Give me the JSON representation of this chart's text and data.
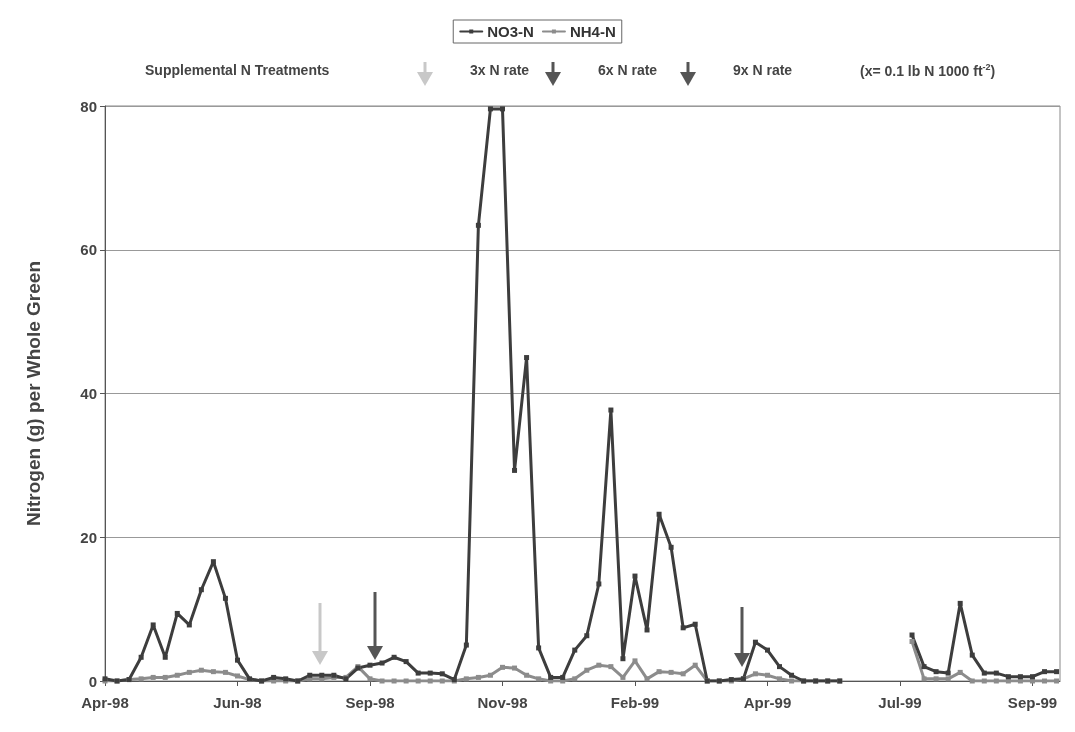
{
  "chart_data": {
    "type": "line",
    "ylabel": "Nitrogen (g) per Whole Green",
    "annotations": [
      "Supplemental N Treatments",
      "3x N rate",
      "6x N rate",
      "9x N rate",
      "(x= 0.1 lb N 1000 ft$^{-2}$)"
    ],
    "x": [
      "1998-04-01",
      "1998-04-08",
      "1998-04-15",
      "1998-04-22",
      "1998-04-29",
      "1998-05-06",
      "1998-05-13",
      "1998-05-20",
      "1998-05-27",
      "1998-06-03",
      "1998-06-10",
      "1998-06-17",
      "1998-06-24",
      "1998-07-01",
      "1998-07-08",
      "1998-07-15",
      "1998-07-22",
      "1998-07-29",
      "1998-08-05",
      "1998-08-12",
      "1998-08-19",
      "1998-08-26",
      "1998-09-02",
      "1998-09-09",
      "1998-09-16",
      "1998-09-23",
      "1998-09-30",
      "1998-10-07",
      "1998-10-14",
      "1998-10-21",
      "1998-10-28",
      "1998-11-04",
      "1998-11-11",
      "1998-11-18",
      "1998-11-25",
      "1998-12-02",
      "1998-12-09",
      "1998-12-16",
      "1998-12-23",
      "1998-12-30",
      "1999-01-06",
      "1999-01-13",
      "1999-01-20",
      "1999-01-27",
      "1999-02-03",
      "1999-02-10",
      "1999-02-17",
      "1999-02-24",
      "1999-03-03",
      "1999-03-10",
      "1999-03-17",
      "1999-03-24",
      "1999-03-31",
      "1999-04-07",
      "1999-04-14",
      "1999-04-21",
      "1999-04-28",
      "1999-05-05",
      "1999-05-12",
      "1999-05-19",
      "1999-05-26",
      "1999-06-02",
      "1999-06-09",
      "1999-06-16",
      "1999-06-23",
      "1999-06-30",
      "1999-07-07",
      "1999-07-14",
      "1999-07-21",
      "1999-07-28",
      "1999-08-04",
      "1999-08-11",
      "1999-08-18",
      "1999-08-25",
      "1999-09-01",
      "1999-09-08",
      "1999-09-15",
      "1999-09-22",
      "1999-09-29",
      "1999-10-06"
    ],
    "series": [
      {
        "name": "NO3-N",
        "color": "#3d3d3d",
        "values": [
          0.3,
          0,
          0.2,
          3.3,
          7.8,
          3.3,
          9.4,
          7.8,
          12.7,
          16.6,
          11.5,
          2.9,
          0.3,
          0,
          0.5,
          0.3,
          0,
          0.8,
          0.8,
          0.8,
          0.3,
          1.8,
          2.2,
          2.5,
          3.3,
          2.7,
          1.1,
          1.1,
          1.0,
          0.2,
          5.0,
          63.4,
          79.6,
          79.6,
          29.3,
          45,
          4.6,
          0.5,
          0.5,
          4.3,
          6.3,
          13.5,
          37.7,
          3.1,
          14.6,
          7.1,
          23.2,
          18.6,
          7.4,
          7.9,
          0,
          0,
          0.2,
          0.3,
          5.4,
          4.3,
          2.0,
          0.8,
          0,
          0,
          0,
          0,
          null,
          null,
          null,
          null,
          null,
          6.4,
          2.0,
          1.3,
          1.1,
          10.8,
          3.6,
          1.1,
          1.1,
          0.6,
          0.6,
          0.6,
          1.3,
          1.3
        ]
      },
      {
        "name": "NH4-N",
        "color": "#8c8c8c",
        "values": [
          0,
          0,
          0.2,
          0.3,
          0.5,
          0.5,
          0.8,
          1.2,
          1.5,
          1.3,
          1.2,
          0.7,
          0.2,
          0,
          0,
          0,
          0,
          0.3,
          0.3,
          0.5,
          0.5,
          2.0,
          0.3,
          0,
          0,
          0,
          0,
          0,
          0,
          0,
          0.3,
          0.5,
          0.8,
          1.9,
          1.8,
          0.8,
          0.3,
          0,
          0,
          0.3,
          1.5,
          2.2,
          2.0,
          0.5,
          2.8,
          0.3,
          1.3,
          1.2,
          1.0,
          2.2,
          0,
          0,
          0,
          0.3,
          1.0,
          0.8,
          0.3,
          0,
          0,
          0,
          0,
          0,
          null,
          null,
          null,
          null,
          null,
          5.5,
          0.3,
          0.3,
          0.3,
          1.2,
          0,
          0,
          0,
          0,
          0,
          0,
          0,
          0
        ]
      }
    ],
    "xlim": [
      "1998-04-01",
      "1999-10-08"
    ],
    "xticks": [
      {
        "value": "1998-04-01",
        "label": "Apr-98"
      },
      {
        "value": "1998-06-17",
        "label": "Jun-98"
      },
      {
        "value": "1998-09-02",
        "label": "Sep-98"
      },
      {
        "value": "1998-11-18",
        "label": "Nov-98"
      },
      {
        "value": "1999-02-03",
        "label": "Feb-99"
      },
      {
        "value": "1999-04-21",
        "label": "Apr-99"
      },
      {
        "value": "1999-07-07",
        "label": "Jul-99"
      },
      {
        "value": "1999-09-22",
        "label": "Sep-99"
      }
    ],
    "ylim": [
      0,
      80
    ],
    "yticks": [
      0,
      20,
      40,
      60,
      80
    ],
    "grid": "y",
    "legend": "top",
    "marker": "square",
    "line_style": "solid"
  }
}
